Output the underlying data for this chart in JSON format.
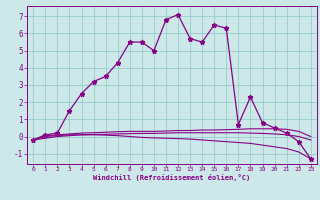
{
  "xlabel": "Windchill (Refroidissement éolien,°C)",
  "bg_color": "#cce8e8",
  "line_color": "#880088",
  "grid_color": "#99cccc",
  "x_ticks": [
    0,
    1,
    2,
    3,
    4,
    5,
    6,
    7,
    8,
    9,
    10,
    11,
    12,
    13,
    14,
    15,
    16,
    17,
    18,
    19,
    20,
    21,
    22,
    23
  ],
  "y_ticks": [
    -1,
    0,
    1,
    2,
    3,
    4,
    5,
    6,
    7
  ],
  "xlim": [
    -0.5,
    23.5
  ],
  "ylim": [
    -1.6,
    7.6
  ],
  "line1_x": [
    0,
    1,
    2,
    3,
    4,
    5,
    6,
    7,
    8,
    9,
    10,
    11,
    12,
    13,
    14,
    15,
    16,
    17,
    18,
    19,
    20,
    21,
    22,
    23
  ],
  "line1_y": [
    -0.2,
    0.1,
    0.2,
    1.5,
    2.5,
    3.2,
    3.5,
    4.3,
    5.5,
    5.5,
    5.0,
    6.8,
    7.1,
    5.7,
    5.5,
    6.5,
    6.3,
    0.7,
    2.3,
    0.8,
    0.5,
    0.2,
    -0.3,
    -1.3
  ],
  "line2_x": [
    0,
    1,
    2,
    3,
    4,
    5,
    6,
    7,
    8,
    9,
    10,
    11,
    12,
    13,
    14,
    15,
    16,
    17,
    18,
    19,
    20,
    21,
    22,
    23
  ],
  "line2_y": [
    -0.2,
    0.05,
    0.1,
    0.15,
    0.2,
    0.22,
    0.25,
    0.28,
    0.3,
    0.3,
    0.3,
    0.32,
    0.35,
    0.35,
    0.38,
    0.38,
    0.4,
    0.42,
    0.45,
    0.45,
    0.45,
    0.42,
    0.3,
    0.0
  ],
  "line3_x": [
    0,
    1,
    2,
    3,
    4,
    5,
    6,
    7,
    8,
    9,
    10,
    11,
    12,
    13,
    14,
    15,
    16,
    17,
    18,
    19,
    20,
    21,
    22,
    23
  ],
  "line3_y": [
    -0.2,
    0.0,
    0.05,
    0.1,
    0.1,
    0.12,
    0.13,
    0.15,
    0.17,
    0.18,
    0.18,
    0.2,
    0.22,
    0.22,
    0.22,
    0.22,
    0.22,
    0.22,
    0.2,
    0.18,
    0.15,
    0.1,
    0.0,
    -0.2
  ],
  "line4_x": [
    0,
    1,
    2,
    3,
    4,
    5,
    6,
    7,
    8,
    9,
    10,
    11,
    12,
    13,
    14,
    15,
    16,
    17,
    18,
    19,
    20,
    21,
    22,
    23
  ],
  "line4_y": [
    -0.2,
    -0.1,
    0.0,
    0.05,
    0.1,
    0.1,
    0.08,
    0.05,
    0.0,
    -0.05,
    -0.08,
    -0.1,
    -0.12,
    -0.15,
    -0.2,
    -0.25,
    -0.3,
    -0.35,
    -0.4,
    -0.5,
    -0.6,
    -0.7,
    -0.9,
    -1.3
  ]
}
